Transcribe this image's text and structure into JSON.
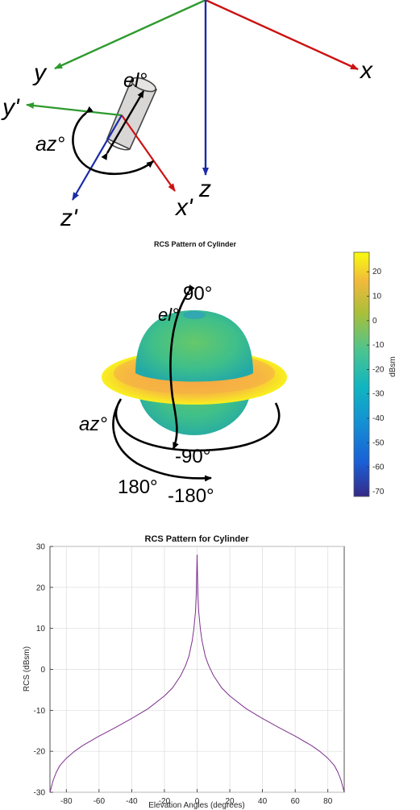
{
  "axes_diagram": {
    "labels": {
      "x": "x",
      "y": "y",
      "z": "z",
      "x_prime": "x'",
      "y_prime": "y'",
      "z_prime": "z'",
      "el": "el°",
      "az": "az°"
    },
    "colors": {
      "x_axis": "#cc1111",
      "y_axis": "#2e9a2e",
      "z_axis": "#1a2aa8",
      "cylinder": "#d9d6d6"
    }
  },
  "pattern_3d": {
    "title": "RCS Pattern of Cylinder",
    "annotations": {
      "el_top": "90°",
      "el": "el°",
      "el_bottom": "-90°",
      "az": "az°",
      "az_left": "180°",
      "az_right": "-180°"
    },
    "colorbar": {
      "label": "dBsm",
      "ticks": [
        "20",
        "10",
        "0",
        "-10",
        "-20",
        "-30",
        "-40",
        "-50",
        "-60",
        "-70"
      ],
      "colormap": "parula"
    }
  },
  "chart_data": {
    "type": "line",
    "title": "RCS Pattern for Cylinder",
    "xlabel": "Elevation Angles (degrees)",
    "ylabel": "RCS (dBsm)",
    "xlim": [
      -90,
      90
    ],
    "ylim": [
      -30,
      30
    ],
    "xticks": [
      "-80",
      "-60",
      "-40",
      "-20",
      "0",
      "20",
      "40",
      "60",
      "80"
    ],
    "yticks": [
      "30",
      "20",
      "10",
      "0",
      "-10",
      "-20",
      "-30"
    ],
    "grid": true,
    "line_color": "#7e2f8e",
    "x": [
      -90,
      -88,
      -86,
      -84,
      -80,
      -75,
      -70,
      -60,
      -50,
      -40,
      -30,
      -20,
      -15,
      -10,
      -7,
      -5,
      -3,
      -2,
      -1,
      -0.5,
      0,
      0.5,
      1,
      2,
      3,
      5,
      7,
      10,
      15,
      20,
      30,
      40,
      50,
      60,
      70,
      75,
      80,
      84,
      86,
      88,
      90
    ],
    "values": [
      -30,
      -27,
      -25,
      -23.5,
      -21.7,
      -20,
      -18.6,
      -16.3,
      -14.2,
      -12,
      -9.6,
      -6.5,
      -4.5,
      -1.5,
      1,
      3.2,
      7,
      9.8,
      14,
      18.5,
      28,
      18.5,
      14,
      9.8,
      7,
      3.2,
      1,
      -1.5,
      -4.5,
      -6.5,
      -9.6,
      -12,
      -14.2,
      -16.3,
      -18.6,
      -20,
      -21.7,
      -23.5,
      -25,
      -27,
      -30
    ]
  }
}
